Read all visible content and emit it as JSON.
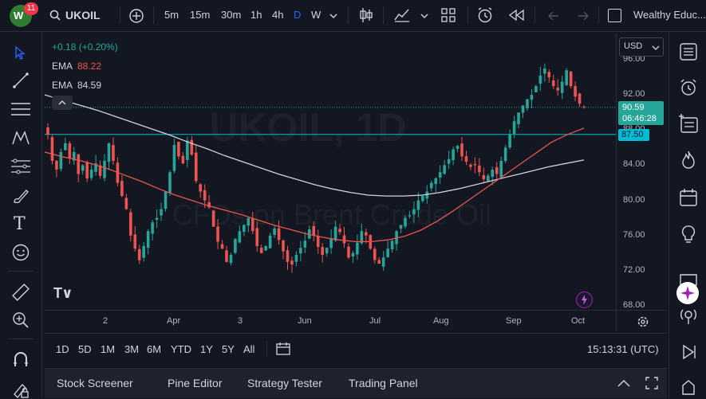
{
  "header": {
    "notifications": "11",
    "symbol": "UKOIL",
    "intervals": [
      "5m",
      "15m",
      "30m",
      "1h",
      "4h",
      "D",
      "W"
    ],
    "active_interval": "D",
    "layout_name": "Wealthy Educ..."
  },
  "legend": {
    "change": "+0.18 (+0.20%)",
    "ema1_label": "EMA",
    "ema1_value": "88.22",
    "ema2_label": "EMA",
    "ema2_value": "84.59"
  },
  "chart_data": {
    "type": "candlestick",
    "symbol": "UKOIL",
    "currency": "USD",
    "watermark_symbol": "UKOIL, 1D",
    "watermark_name": "CFDs on Brent Crude Oil",
    "price_ticks": [
      "96.00",
      "92.00",
      "88.00",
      "84.00",
      "80.00",
      "76.00",
      "72.00",
      "68.00"
    ],
    "ylim": [
      67,
      97
    ],
    "date_ticks": [
      "2",
      "Apr",
      "3",
      "Jun",
      "Jul",
      "Aug",
      "Sep",
      "Oct"
    ],
    "last_price": "90.59",
    "countdown": "06:46:28",
    "horizontal_line": "87.50",
    "ema_fast_color": "#ef5350",
    "ema_slow_color": "#d1d4dc",
    "up_color": "#26a69a",
    "down_color": "#ef5350",
    "price_path": [
      87.5,
      84.5,
      83.5,
      85.5,
      86.5,
      84.8,
      85.5,
      83.0,
      84.0,
      82.5,
      83.5,
      84.2,
      82.8,
      84.5,
      86.5,
      84.5,
      82.0,
      80.5,
      79.0,
      76.0,
      74.5,
      73.2,
      74.8,
      76.5,
      77.5,
      78.0,
      79.0,
      81.0,
      83.2,
      86.3,
      85.0,
      84.2,
      86.8,
      85.2,
      82.2,
      81.0,
      80.0,
      79.2,
      77.0,
      75.3,
      74.5,
      73.0,
      73.8,
      75.6,
      76.5,
      77.2,
      78.0,
      76.5,
      74.8,
      74.0,
      74.8,
      76.0,
      76.8,
      75.5,
      74.2,
      73.0,
      72.7,
      73.8,
      74.6,
      75.4,
      76.7,
      76.0,
      74.7,
      73.8,
      74.6,
      75.7,
      77.0,
      76.4,
      75.1,
      73.5,
      74.0,
      75.2,
      76.5,
      76.0,
      74.5,
      73.2,
      72.8,
      73.5,
      74.5,
      75.4,
      76.5,
      77.2,
      78.0,
      78.3,
      79.0,
      80.0,
      80.5,
      81.0,
      82.0,
      82.5,
      83.2,
      84.0,
      84.7,
      85.8,
      86.2,
      85.0,
      84.4,
      83.8,
      84.0,
      83.2,
      82.4,
      82.8,
      83.5,
      83.0,
      84.5,
      86.0,
      87.5,
      89.0,
      90.0,
      90.8,
      91.5,
      92.0,
      93.0,
      94.2,
      95.0,
      94.0,
      93.0,
      92.5,
      93.5,
      94.8,
      93.0,
      91.8,
      91.0,
      90.59
    ],
    "ema_fast_path": [
      85.5,
      85.0,
      84.6,
      84.1,
      83.5,
      82.8,
      82.1,
      81.3,
      80.6,
      80.0,
      79.4,
      78.9,
      78.4,
      77.8,
      77.2,
      76.7,
      76.2,
      75.8,
      75.5,
      75.3,
      75.3,
      75.5,
      75.9,
      76.6,
      77.6,
      78.8,
      80.1,
      81.4,
      82.7,
      84.0,
      85.3,
      86.6,
      87.5,
      88.22
    ],
    "ema_slow_path": [
      92.0,
      91.4,
      90.8,
      90.2,
      89.5,
      88.8,
      88.1,
      87.4,
      86.6,
      85.9,
      85.1,
      84.4,
      83.7,
      83.0,
      82.4,
      81.8,
      81.3,
      80.9,
      80.6,
      80.5,
      80.5,
      80.6,
      80.9,
      81.3,
      81.8,
      82.3,
      82.8,
      83.3,
      83.8,
      84.2,
      84.59
    ]
  },
  "range_bar": {
    "ranges": [
      "1D",
      "5D",
      "1M",
      "3M",
      "6M",
      "YTD",
      "1Y",
      "5Y",
      "All"
    ],
    "time": "15:13:31 (UTC)"
  },
  "panels": [
    "Stock Screener",
    "Pine Editor",
    "Strategy Tester",
    "Trading Panel"
  ]
}
